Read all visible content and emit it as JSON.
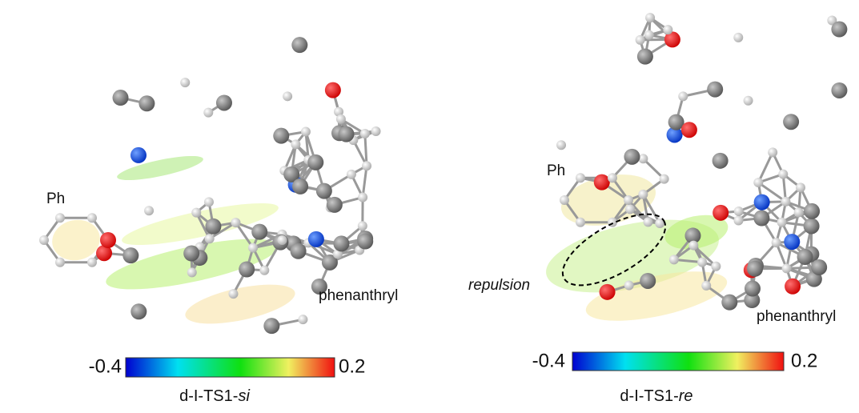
{
  "panels": [
    {
      "ph_label": "Ph",
      "phenanthryl_label": "phenanthryl",
      "scale_min": -0.4,
      "scale_max": 0.2,
      "caption": {
        "prefix": "d-I-TS1-",
        "italic": "si"
      }
    },
    {
      "ph_label": "Ph",
      "phenanthryl_label": "phenanthryl",
      "annotation": "repulsion",
      "scale_min": -0.4,
      "scale_max": 0.2,
      "caption": {
        "prefix": "d-I-TS1-",
        "italic": "re"
      }
    }
  ]
}
